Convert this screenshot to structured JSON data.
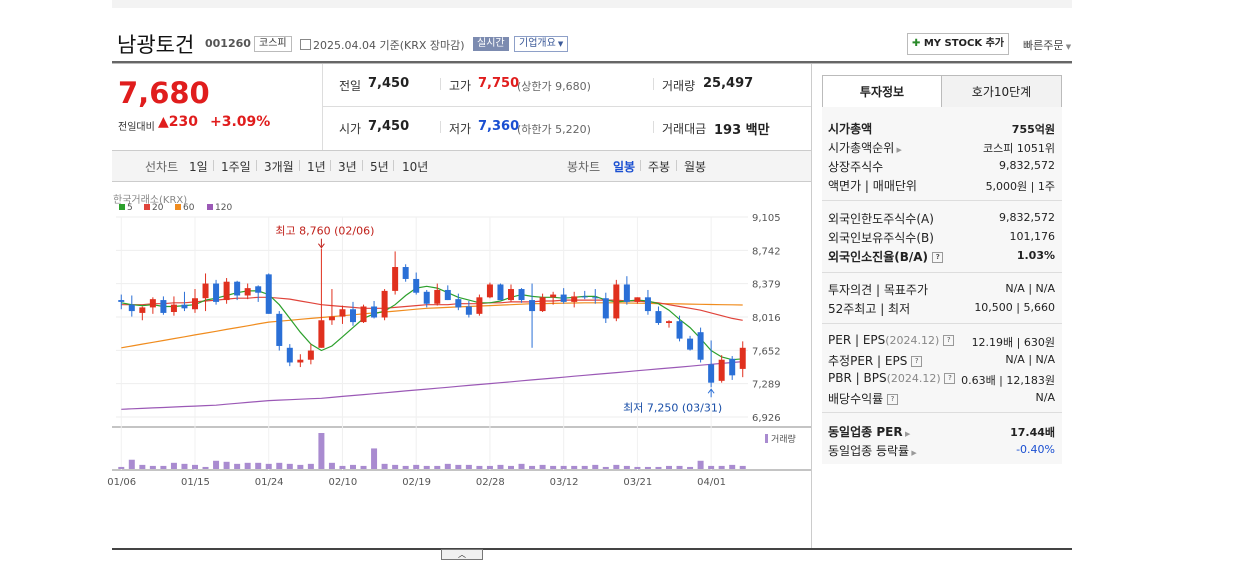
{
  "stock": {
    "name": "남광토건",
    "code": "001260",
    "market": "코스피",
    "date": "2025.04.04  기준(KRX 장마감)",
    "realtime": "실시간",
    "company_menu": "기업개요",
    "mystock_label": "MY STOCK 추가",
    "quick_order": "빠른주문"
  },
  "quote": {
    "price": "7,680",
    "change_label": "전일대비",
    "change": "230",
    "change_pct": "+3.09%",
    "prev_label": "전일",
    "prev": "7,450",
    "high_label": "고가",
    "high": "7,750",
    "upper_limit": "(상한가 9,680)",
    "volume_label": "거래량",
    "volume": "25,497",
    "open_label": "시가",
    "open": "7,450",
    "low_label": "저가",
    "low": "7,360",
    "lower_limit": "(하한가 5,220)",
    "amount_label": "거래대금",
    "amount": "193 백만"
  },
  "chart_tabs": {
    "line_label": "선차트",
    "line_periods": [
      "1일",
      "1주일",
      "3개월",
      "1년",
      "3년",
      "5년",
      "10년"
    ],
    "candle_label": "봉차트",
    "candle_periods": [
      "일봉",
      "주봉",
      "월봉"
    ]
  },
  "chart_text": {
    "source": "한국거래소(KRX)",
    "legend": [
      "5",
      "20",
      "60",
      "120"
    ],
    "legend_colors": [
      "#2ca02c",
      "#e0443b",
      "#f08c1e",
      "#9b59b6"
    ],
    "max_note": "최고 8,760 (02/06)",
    "min_note": "최저 7,250 (03/31)",
    "volume_label": "거래량",
    "yticks": [
      "9,105",
      "8,742",
      "8,379",
      "8,016",
      "7,652",
      "7,289",
      "6,926"
    ],
    "xticks": [
      "01/06",
      "01/15",
      "01/24",
      "02/10",
      "02/19",
      "02/28",
      "03/12",
      "03/21",
      "04/01"
    ]
  },
  "chart_data": {
    "type": "candlestick",
    "ylim": [
      6926,
      9105
    ],
    "x": [
      "01/06",
      "01/07",
      "01/08",
      "01/09",
      "01/10",
      "01/13",
      "01/14",
      "01/15",
      "01/16",
      "01/17",
      "01/20",
      "01/21",
      "01/22",
      "01/23",
      "01/24",
      "01/31",
      "02/03",
      "02/04",
      "02/05",
      "02/06",
      "02/07",
      "02/10",
      "02/11",
      "02/12",
      "02/13",
      "02/14",
      "02/17",
      "02/18",
      "02/19",
      "02/20",
      "02/21",
      "02/24",
      "02/25",
      "02/26",
      "02/27",
      "02/28",
      "03/04",
      "03/05",
      "03/06",
      "03/07",
      "03/10",
      "03/11",
      "03/12",
      "03/13",
      "03/14",
      "03/17",
      "03/18",
      "03/19",
      "03/20",
      "03/21",
      "03/24",
      "03/25",
      "03/26",
      "03/27",
      "03/28",
      "03/31",
      "04/01",
      "04/02",
      "04/03",
      "04/04"
    ],
    "ohlc": [
      [
        8200,
        8260,
        8100,
        8180
      ],
      [
        8150,
        8250,
        8020,
        8080
      ],
      [
        8060,
        8130,
        7980,
        8120
      ],
      [
        8120,
        8230,
        8050,
        8210
      ],
      [
        8200,
        8240,
        8040,
        8060
      ],
      [
        8070,
        8240,
        8030,
        8150
      ],
      [
        8150,
        8290,
        8080,
        8110
      ],
      [
        8100,
        8320,
        8060,
        8220
      ],
      [
        8220,
        8490,
        8080,
        8380
      ],
      [
        8380,
        8420,
        8150,
        8180
      ],
      [
        8200,
        8440,
        8160,
        8400
      ],
      [
        8400,
        8410,
        8200,
        8250
      ],
      [
        8250,
        8380,
        8210,
        8330
      ],
      [
        8350,
        8360,
        8180,
        8280
      ],
      [
        8480,
        8490,
        8050,
        8050
      ],
      [
        8050,
        8080,
        7650,
        7700
      ],
      [
        7680,
        7720,
        7480,
        7520
      ],
      [
        7520,
        7610,
        7470,
        7550
      ],
      [
        7550,
        7720,
        7500,
        7650
      ],
      [
        7680,
        8760,
        7680,
        7980
      ],
      [
        7980,
        8320,
        7930,
        8020
      ],
      [
        8020,
        8140,
        7940,
        8100
      ],
      [
        8100,
        8180,
        7920,
        7960
      ],
      [
        7960,
        8150,
        7950,
        8130
      ],
      [
        8130,
        8190,
        8000,
        8010
      ],
      [
        8010,
        8320,
        7980,
        8300
      ],
      [
        8300,
        8730,
        8260,
        8560
      ],
      [
        8560,
        8590,
        8400,
        8430
      ],
      [
        8430,
        8500,
        8260,
        8280
      ],
      [
        8290,
        8310,
        8120,
        8160
      ],
      [
        8160,
        8380,
        8140,
        8310
      ],
      [
        8310,
        8360,
        8200,
        8200
      ],
      [
        8210,
        8270,
        8090,
        8120
      ],
      [
        8130,
        8190,
        8010,
        8040
      ],
      [
        8050,
        8260,
        8030,
        8230
      ],
      [
        8230,
        8390,
        8220,
        8370
      ],
      [
        8370,
        8380,
        8200,
        8200
      ],
      [
        8200,
        8370,
        8180,
        8320
      ],
      [
        8320,
        8330,
        8170,
        8200
      ],
      [
        8200,
        8380,
        7680,
        8080
      ],
      [
        8080,
        8270,
        8070,
        8230
      ],
      [
        8230,
        8290,
        8150,
        8260
      ],
      [
        8260,
        8330,
        8160,
        8180
      ],
      [
        8180,
        8290,
        8120,
        8240
      ],
      [
        8240,
        8300,
        8210,
        8230
      ],
      [
        8230,
        8320,
        8160,
        8220
      ],
      [
        8220,
        8280,
        7950,
        8000
      ],
      [
        8000,
        8420,
        7970,
        8370
      ],
      [
        8370,
        8460,
        8150,
        8180
      ],
      [
        8180,
        8230,
        8160,
        8230
      ],
      [
        8230,
        8310,
        8040,
        8080
      ],
      [
        8080,
        8130,
        7930,
        7950
      ],
      [
        7950,
        7980,
        7900,
        7970
      ],
      [
        7970,
        8030,
        7750,
        7780
      ],
      [
        7780,
        7810,
        7650,
        7660
      ],
      [
        7850,
        7900,
        7520,
        7550
      ],
      [
        7500,
        7760,
        7250,
        7300
      ],
      [
        7320,
        7600,
        7300,
        7550
      ],
      [
        7560,
        7590,
        7330,
        7380
      ],
      [
        7450,
        7750,
        7360,
        7680
      ]
    ],
    "ma5": [
      8170,
      8150,
      8140,
      8150,
      8130,
      8130,
      8140,
      8150,
      8200,
      8220,
      8250,
      8280,
      8300,
      8300,
      8260,
      8150,
      8000,
      7850,
      7720,
      7650,
      7700,
      7800,
      7900,
      8000,
      8050,
      8080,
      8150,
      8250,
      8330,
      8350,
      8330,
      8280,
      8230,
      8200,
      8170,
      8170,
      8190,
      8230,
      8260,
      8240,
      8230,
      8230,
      8220,
      8230,
      8240,
      8240,
      8200,
      8180,
      8190,
      8200,
      8190,
      8160,
      8090,
      7990,
      7900,
      7780,
      7650,
      7580,
      7550,
      7560
    ],
    "ma20": [
      8150,
      8150,
      8150,
      8160,
      8160,
      8170,
      8170,
      8180,
      8190,
      8200,
      8210,
      8220,
      8220,
      8230,
      8230,
      8220,
      8210,
      8190,
      8170,
      8150,
      8140,
      8130,
      8120,
      8110,
      8110,
      8110,
      8120,
      8130,
      8140,
      8150,
      8150,
      8150,
      8160,
      8160,
      8160,
      8170,
      8170,
      8180,
      8180,
      8180,
      8190,
      8190,
      8200,
      8200,
      8200,
      8200,
      8200,
      8200,
      8190,
      8190,
      8180,
      8170,
      8150,
      8130,
      8110,
      8090,
      8060,
      8030,
      8000,
      7980
    ],
    "ma60": [
      7680,
      7700,
      7720,
      7740,
      7760,
      7780,
      7800,
      7820,
      7840,
      7860,
      7880,
      7900,
      7920,
      7940,
      7960,
      7970,
      7980,
      7990,
      8000,
      8010,
      8020,
      8030,
      8040,
      8050,
      8060,
      8070,
      8080,
      8090,
      8100,
      8110,
      8115,
      8120,
      8125,
      8130,
      8135,
      8140,
      8145,
      8150,
      8155,
      8160,
      8162,
      8164,
      8166,
      8168,
      8170,
      8170,
      8170,
      8170,
      8168,
      8166,
      8164,
      8162,
      8160,
      8158,
      8156,
      8154,
      8152,
      8150,
      8148,
      8146
    ],
    "ma120": [
      7010,
      7015,
      7020,
      7025,
      7030,
      7035,
      7040,
      7045,
      7050,
      7055,
      7065,
      7075,
      7085,
      7095,
      7105,
      7110,
      7115,
      7120,
      7125,
      7130,
      7140,
      7150,
      7160,
      7170,
      7180,
      7190,
      7200,
      7210,
      7220,
      7230,
      7240,
      7250,
      7260,
      7270,
      7280,
      7290,
      7300,
      7310,
      7320,
      7330,
      7340,
      7350,
      7360,
      7370,
      7380,
      7390,
      7400,
      7410,
      7420,
      7430,
      7440,
      7450,
      7460,
      7470,
      7480,
      7490,
      7500,
      7510,
      7520,
      7530
    ],
    "volume": [
      200,
      900,
      400,
      300,
      300,
      600,
      500,
      400,
      200,
      800,
      700,
      500,
      600,
      600,
      500,
      600,
      500,
      400,
      500,
      3500,
      600,
      300,
      400,
      300,
      2000,
      500,
      400,
      300,
      400,
      300,
      300,
      500,
      400,
      400,
      300,
      300,
      400,
      300,
      500,
      300,
      400,
      300,
      300,
      300,
      300,
      400,
      200,
      400,
      300,
      200,
      200,
      200,
      300,
      300,
      200,
      800,
      300,
      300,
      400,
      300
    ]
  },
  "right_panel": {
    "tab_info": "투자정보",
    "tab_quotes": "호가10단계",
    "rows1": [
      {
        "label": "시가총액",
        "value": "755억원"
      },
      {
        "label": "시가총액순위",
        "value": "코스피 1051위"
      },
      {
        "label": "상장주식수",
        "value": "9,832,572"
      },
      {
        "label": "액면가 | 매매단위",
        "value": "5,000원 | 1주"
      }
    ],
    "rows2": [
      {
        "label": "외국인한도주식수(A)",
        "value": "9,832,572"
      },
      {
        "label": "외국인보유주식수(B)",
        "value": "101,176"
      },
      {
        "label": "외국인소진율(B/A)",
        "value": "1.03%"
      }
    ],
    "rows3": [
      {
        "label": "투자의견 | 목표주가",
        "value": "N/A | N/A"
      },
      {
        "label": "52주최고 | 최저",
        "value": "10,500 | 5,660"
      }
    ],
    "rows4": [
      {
        "label": "PER | EPS",
        "sub": "(2024.12)",
        "value": "12.19배 | 630원"
      },
      {
        "label": "추정PER | EPS",
        "sub": "",
        "value": "N/A | N/A"
      },
      {
        "label": "PBR | BPS",
        "sub": "(2024.12)",
        "value": "0.63배 | 12,183원"
      },
      {
        "label": "배당수익률",
        "sub": "",
        "value": "N/A"
      }
    ],
    "rows5": [
      {
        "label": "동일업종 PER",
        "value": "17.44배"
      },
      {
        "label": "동일업종 등락률",
        "value": "-0.40%"
      }
    ]
  }
}
